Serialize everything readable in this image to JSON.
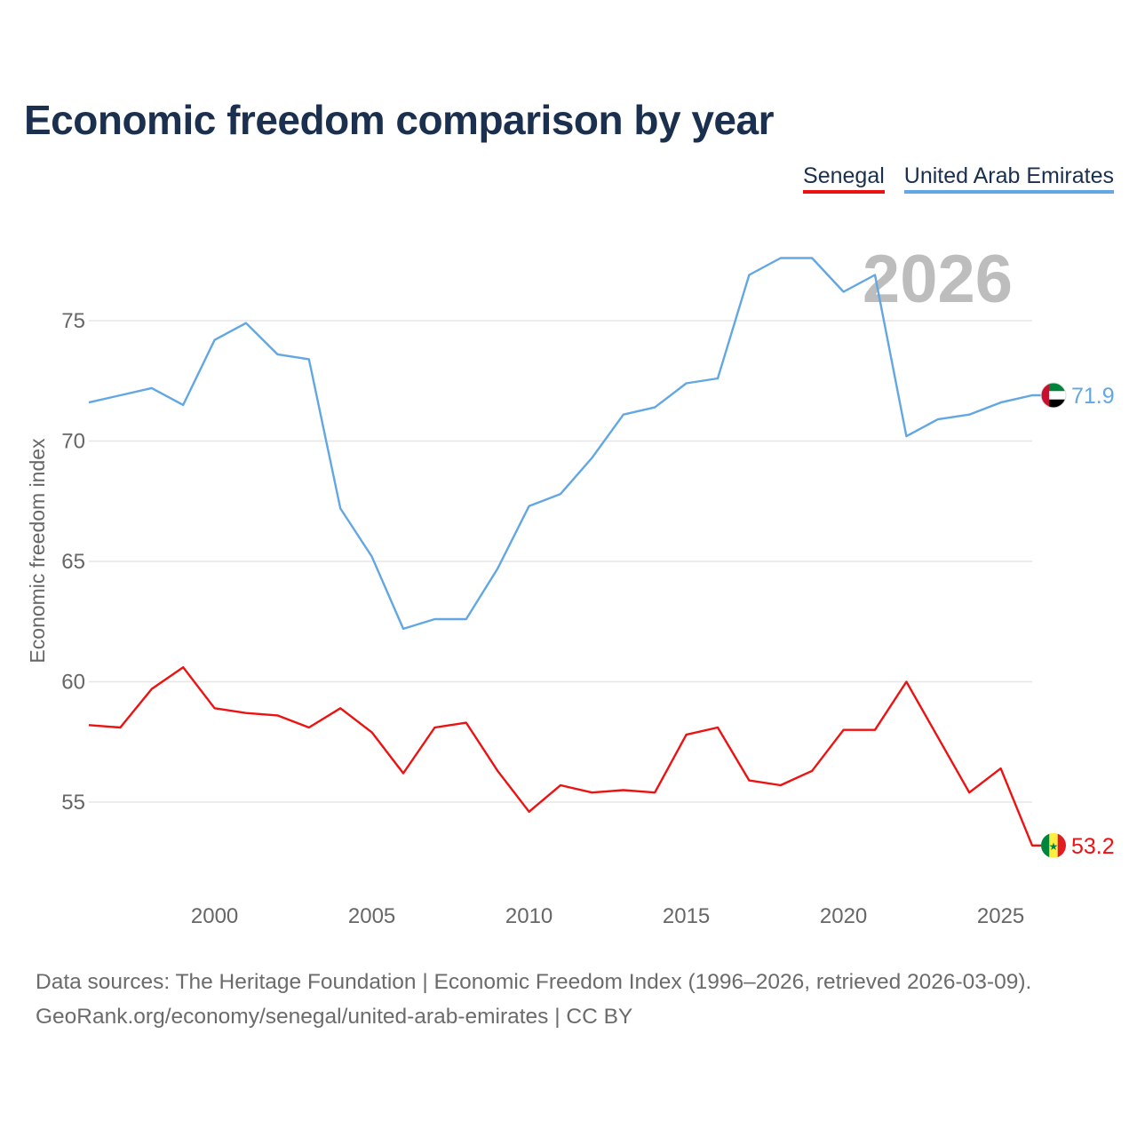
{
  "title": "Economic freedom comparison by year",
  "legend": [
    {
      "name": "Senegal",
      "color": "#ee1111"
    },
    {
      "name": "United Arab Emirates",
      "color": "#62a7e3"
    }
  ],
  "year_watermark": "2026",
  "footer": {
    "line1": "Data sources: The Heritage Foundation | Economic Freedom Index (1996–2026, retrieved 2026-03-09).",
    "line2": "GeoRank.org/economy/senegal/united-arab-emirates | CC BY"
  },
  "chart_data": {
    "type": "line",
    "title": "Economic freedom comparison by year",
    "xlabel": "",
    "ylabel": "Economic freedom index",
    "xlim": [
      1996,
      2026
    ],
    "ylim": [
      51.5,
      78.5
    ],
    "x_ticks": [
      2000,
      2005,
      2010,
      2015,
      2020,
      2025
    ],
    "y_ticks": [
      55,
      60,
      65,
      70,
      75
    ],
    "grid": true,
    "legend_position": "top-right",
    "x": [
      1996,
      1997,
      1998,
      1999,
      2000,
      2001,
      2002,
      2003,
      2004,
      2005,
      2006,
      2007,
      2008,
      2009,
      2010,
      2011,
      2012,
      2013,
      2014,
      2015,
      2016,
      2017,
      2018,
      2019,
      2020,
      2021,
      2022,
      2023,
      2024,
      2025,
      2026
    ],
    "series": [
      {
        "name": "Senegal",
        "color": "#ee1111",
        "end_label": "53.2",
        "flag": "senegal-flag",
        "values": [
          58.2,
          58.1,
          59.7,
          60.6,
          58.9,
          58.7,
          58.6,
          58.1,
          58.9,
          57.9,
          56.2,
          58.1,
          58.3,
          56.3,
          54.6,
          55.7,
          55.4,
          55.5,
          55.4,
          57.8,
          58.1,
          55.9,
          55.7,
          56.3,
          58.0,
          58.0,
          60.0,
          57.7,
          55.4,
          56.4,
          53.2
        ]
      },
      {
        "name": "United Arab Emirates",
        "color": "#62a7e3",
        "end_label": "71.9",
        "flag": "uae-flag",
        "values": [
          71.6,
          71.9,
          72.2,
          71.5,
          74.2,
          74.9,
          73.6,
          73.4,
          67.2,
          65.2,
          62.2,
          62.6,
          62.6,
          64.7,
          67.3,
          67.8,
          69.3,
          71.1,
          71.4,
          72.4,
          72.6,
          76.9,
          77.6,
          77.6,
          76.2,
          76.9,
          70.2,
          70.9,
          71.1,
          71.6,
          71.9
        ]
      }
    ]
  }
}
